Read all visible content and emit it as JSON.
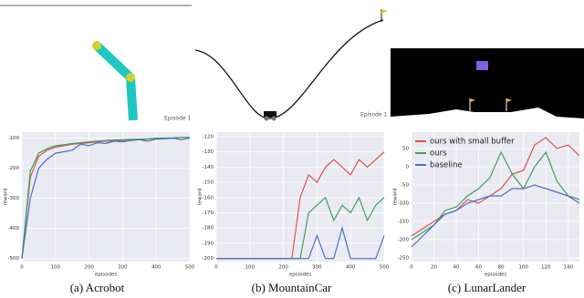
{
  "chart_data": [
    {
      "type": "line",
      "caption": "(a) Acrobot",
      "episode_label": "Episode 1",
      "xlabel": "episodes",
      "ylabel": "reward",
      "x": [
        0,
        25,
        50,
        75,
        100,
        125,
        150,
        175,
        200,
        225,
        250,
        275,
        300,
        325,
        350,
        375,
        400,
        425,
        450,
        475,
        500
      ],
      "xlim": [
        0,
        500
      ],
      "xticks": [
        0,
        100,
        200,
        300,
        400,
        500
      ],
      "ylim": [
        -510,
        -80
      ],
      "yticks": [
        -500,
        -400,
        -300,
        -200,
        -100
      ],
      "grid": true,
      "series": [
        {
          "color": "#d9534f",
          "values": [
            -500,
            -230,
            -160,
            -140,
            -130,
            -125,
            -120,
            -118,
            -115,
            -112,
            -110,
            -110,
            -108,
            -105,
            -105,
            -103,
            -102,
            -100,
            -100,
            -98,
            -97
          ]
        },
        {
          "color": "#3fa05a",
          "values": [
            -500,
            -210,
            -150,
            -135,
            -125,
            -122,
            -118,
            -115,
            -112,
            -110,
            -108,
            -106,
            -105,
            -104,
            -103,
            -102,
            -100,
            -100,
            -99,
            -98,
            -97
          ]
        },
        {
          "color": "#4a6fc7",
          "values": [
            -500,
            -300,
            -200,
            -170,
            -150,
            -145,
            -140,
            -120,
            -125,
            -115,
            -118,
            -110,
            -112,
            -108,
            -105,
            -110,
            -103,
            -102,
            -100,
            -105,
            -100
          ]
        }
      ]
    },
    {
      "type": "line",
      "caption": "(b) MountainCar",
      "episode_label": "Episode 1",
      "xlabel": "episodes",
      "ylabel": "reward",
      "x": [
        0,
        25,
        50,
        75,
        100,
        125,
        150,
        175,
        200,
        225,
        250,
        275,
        300,
        325,
        350,
        375,
        400,
        425,
        450,
        475,
        500
      ],
      "xlim": [
        0,
        500
      ],
      "xticks": [
        0,
        100,
        200,
        300,
        400,
        500
      ],
      "ylim": [
        -202,
        -117
      ],
      "yticks": [
        -200,
        -190,
        -180,
        -170,
        -160,
        -150,
        -140,
        -130,
        -120
      ],
      "grid": true,
      "series": [
        {
          "color": "#d9534f",
          "values": [
            -200,
            -200,
            -200,
            -200,
            -200,
            -200,
            -200,
            -200,
            -200,
            -200,
            -160,
            -145,
            -150,
            -140,
            -135,
            -140,
            -145,
            -135,
            -140,
            -135,
            -130
          ]
        },
        {
          "color": "#3fa05a",
          "values": [
            -200,
            -200,
            -200,
            -200,
            -200,
            -200,
            -200,
            -200,
            -200,
            -200,
            -200,
            -170,
            -165,
            -160,
            -175,
            -165,
            -170,
            -160,
            -175,
            -165,
            -160
          ]
        },
        {
          "color": "#4a6fc7",
          "values": [
            -200,
            -200,
            -200,
            -200,
            -200,
            -200,
            -200,
            -200,
            -200,
            -200,
            -200,
            -200,
            -185,
            -200,
            -200,
            -180,
            -200,
            -200,
            -200,
            -200,
            -185
          ]
        }
      ]
    },
    {
      "type": "line",
      "caption": "(c) LunarLander",
      "xlabel": "episodes",
      "ylabel": "reward",
      "x": [
        0,
        10,
        20,
        30,
        40,
        50,
        60,
        70,
        80,
        90,
        100,
        110,
        120,
        130,
        140,
        150
      ],
      "xlim": [
        0,
        150
      ],
      "xticks": [
        0,
        20,
        40,
        60,
        80,
        100,
        120,
        140
      ],
      "ylim": [
        -260,
        95
      ],
      "yticks": [
        -250,
        -200,
        -150,
        -100,
        -50,
        0,
        50
      ],
      "grid": true,
      "legend": "upper left",
      "series": [
        {
          "name": "ours with small buffer",
          "color": "#d9534f",
          "values": [
            -190,
            -170,
            -150,
            -130,
            -120,
            -90,
            -100,
            -80,
            -60,
            -20,
            -10,
            60,
            80,
            50,
            60,
            30
          ]
        },
        {
          "name": "ours",
          "color": "#3fa05a",
          "values": [
            -200,
            -180,
            -160,
            -120,
            -110,
            -80,
            -60,
            -30,
            40,
            -20,
            -60,
            0,
            40,
            -40,
            -80,
            -90
          ]
        },
        {
          "name": "baseline",
          "color": "#4a6fc7",
          "values": [
            -220,
            -190,
            -160,
            -130,
            -120,
            -100,
            -90,
            -80,
            -80,
            -60,
            -60,
            -50,
            -60,
            -70,
            -80,
            -100
          ]
        }
      ]
    }
  ]
}
